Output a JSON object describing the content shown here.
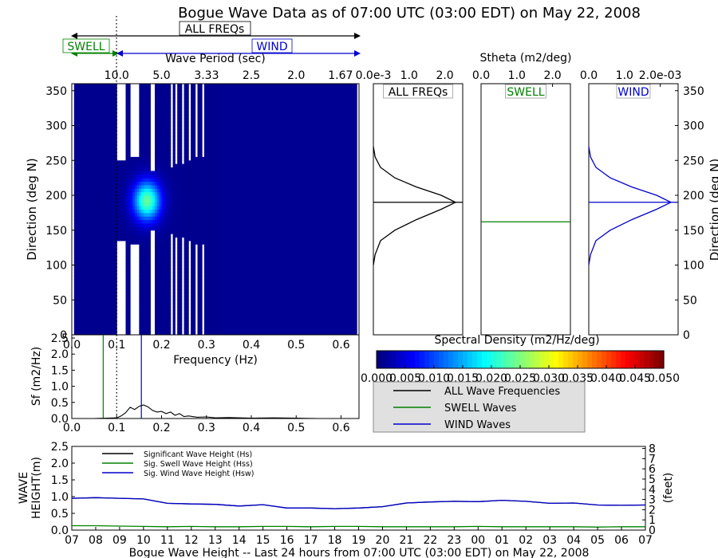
{
  "title": "Bogue Wave Data as of 07:00 UTC (03:00 EDT) on May 22, 2008",
  "header": {
    "all_label": "ALL FREQs",
    "swell_label": "SWELL",
    "wind_label": "WIND",
    "period_label": "Wave Period (sec)",
    "period_ticks": [
      "10.0",
      "5.0",
      "3.33",
      "2.5",
      "2.0",
      "1.67"
    ],
    "stheta_label": "Stheta (m2/deg)"
  },
  "colors": {
    "all": "#000000",
    "swell": "#008000",
    "wind": "#0000cc",
    "colormap": [
      "#00007f",
      "#0000ff",
      "#007fff",
      "#00ffff",
      "#7fff7f",
      "#ffff00",
      "#ff7f00",
      "#ff0000",
      "#7f0000"
    ]
  },
  "chart_data": [
    {
      "id": "spectrum_heatmap",
      "type": "heatmap",
      "title": "",
      "xlabel": "Frequency (Hz)",
      "ylabel": "Direction (deg N)",
      "xlim": [
        0.0,
        0.64
      ],
      "ylim": [
        0,
        360
      ],
      "x_ticks": [
        "0.0",
        "0.1",
        "0.2",
        "0.3",
        "0.4",
        "0.5",
        "0.6"
      ],
      "y_ticks": [
        "0",
        "50",
        "100",
        "150",
        "200",
        "250",
        "300",
        "350"
      ],
      "swell_wind_separation_hz": 0.1,
      "ridge": {
        "direction_center": 190,
        "direction_spread": 28,
        "freq_center": 0.165,
        "freq_spread": 0.03,
        "peak_density": 0.023
      },
      "gap_columns_hz": [
        0.11,
        0.115,
        0.13,
        0.135,
        0.14,
        0.145,
        0.175,
        0.18,
        0.22,
        0.23,
        0.245,
        0.26,
        0.275,
        0.29
      ],
      "colorbar": {
        "label": "Spectral Density (m2/Hz/deg)",
        "range": [
          0.0,
          0.05
        ],
        "ticks": [
          "0.000",
          "0.005",
          "0.010",
          "0.015",
          "0.020",
          "0.025",
          "0.030",
          "0.035",
          "0.040",
          "0.045",
          "0.050"
        ]
      }
    },
    {
      "id": "stheta_all",
      "type": "line",
      "label": "ALL FREQs",
      "x_ticks": [
        "0.0e-3",
        "1.0",
        "2.0"
      ],
      "xlim": [
        0,
        0.0025
      ],
      "ylim": [
        0,
        360
      ],
      "mean_direction": 190,
      "x": [
        0,
        5e-05,
        0.0002,
        0.0006,
        0.0012,
        0.0019,
        0.0023,
        0.0019,
        0.0012,
        0.0006,
        0.0002,
        5e-05,
        0
      ],
      "y": [
        100,
        115,
        135,
        150,
        165,
        180,
        190,
        200,
        212,
        225,
        240,
        255,
        270
      ]
    },
    {
      "id": "stheta_swell",
      "type": "line",
      "label": "SWELL",
      "x_ticks": [
        "0.0",
        "1.0",
        "2.0"
      ],
      "xlim": [
        0,
        2.5
      ],
      "ylim": [
        0,
        360
      ],
      "mean_direction": 162,
      "x": [],
      "y": []
    },
    {
      "id": "stheta_wind",
      "type": "line",
      "label": "WIND",
      "x_ticks": [
        "0.0",
        "1.0",
        "2.0e-03"
      ],
      "xlim": [
        0,
        0.0025
      ],
      "ylim": [
        0,
        360
      ],
      "mean_direction": 190,
      "x": [
        0,
        5e-05,
        0.0002,
        0.0006,
        0.0012,
        0.0019,
        0.0023,
        0.0019,
        0.0012,
        0.0006,
        0.0002,
        5e-05,
        0
      ],
      "y": [
        100,
        115,
        135,
        150,
        165,
        180,
        190,
        200,
        212,
        225,
        240,
        255,
        270
      ],
      "right_ylabel": "Direction (deg N)",
      "y_ticks": [
        "0",
        "50",
        "100",
        "150",
        "200",
        "250",
        "300",
        "350"
      ]
    },
    {
      "id": "frequency_spectrum",
      "type": "line",
      "ylabel": "Sf (m2/Hz)",
      "xlim": [
        0.0,
        0.64
      ],
      "ylim": [
        0,
        2.6
      ],
      "x_ticks": [
        "0.0",
        "0.1",
        "0.2",
        "0.3",
        "0.4",
        "0.5",
        "0.6"
      ],
      "y_ticks": [
        "0.0",
        "0.5",
        "1.0",
        "1.5",
        "2.0",
        "2.5"
      ],
      "swell_peak_hz": 0.07,
      "wind_peak_hz": 0.155,
      "separation_hz": 0.1,
      "x": [
        0.0,
        0.05,
        0.1,
        0.11,
        0.12,
        0.13,
        0.14,
        0.15,
        0.16,
        0.17,
        0.18,
        0.19,
        0.2,
        0.21,
        0.22,
        0.23,
        0.24,
        0.25,
        0.26,
        0.28,
        0.3,
        0.32,
        0.35,
        0.4,
        0.45,
        0.5,
        0.55
      ],
      "y": [
        0.0,
        0.0,
        0.02,
        0.08,
        0.18,
        0.35,
        0.28,
        0.38,
        0.42,
        0.36,
        0.25,
        0.2,
        0.22,
        0.15,
        0.2,
        0.1,
        0.15,
        0.06,
        0.08,
        0.04,
        0.05,
        0.02,
        0.03,
        0.01,
        0.02,
        0.01,
        0.0
      ],
      "legend": [
        "ALL Wave Frequencies",
        "SWELL Waves",
        "WIND Waves"
      ]
    },
    {
      "id": "wave_height_history",
      "type": "line",
      "title": "Bogue Wave Height -- Last 24 hours from 07:00 UTC (03:00 EDT) on May 22, 2008",
      "ylabel": "WAVE HEIGHT(m)",
      "ylim": [
        0,
        2.5
      ],
      "y_ticks": [
        "0.0",
        "0.5",
        "1.0",
        "1.5",
        "2.0",
        "2.5"
      ],
      "right_ylabel": "(feet)",
      "right_ylim": [
        0,
        8.2
      ],
      "right_ticks": [
        "0",
        "1",
        "2",
        "3",
        "4",
        "5",
        "6",
        "7",
        "8"
      ],
      "categories": [
        "07",
        "08",
        "09",
        "10",
        "11",
        "12",
        "13",
        "14",
        "15",
        "16",
        "17",
        "18",
        "19",
        "20",
        "21",
        "22",
        "23",
        "00",
        "01",
        "02",
        "03",
        "04",
        "05",
        "06",
        "07"
      ],
      "legend": [
        "Significant Wave Height (Hs)",
        "Sig. Swell Wave Height (Hss)",
        "Sig. Wind Wave Height (Hsw)"
      ],
      "series": [
        {
          "name": "Significant Wave Height (Hs)",
          "key": "all",
          "values": [
            0.95,
            0.97,
            0.95,
            0.93,
            0.8,
            0.78,
            0.77,
            0.72,
            0.76,
            0.66,
            0.66,
            0.64,
            0.66,
            0.7,
            0.81,
            0.84,
            0.86,
            0.85,
            0.89,
            0.86,
            0.8,
            0.81,
            0.75,
            0.74,
            0.75
          ]
        },
        {
          "name": "Sig. Swell Wave Height (Hss)",
          "key": "swell",
          "values": [
            0.13,
            0.13,
            0.12,
            0.11,
            0.1,
            0.11,
            0.1,
            0.1,
            0.11,
            0.11,
            0.1,
            0.11,
            0.11,
            0.1,
            0.1,
            0.1,
            0.1,
            0.11,
            0.1,
            0.1,
            0.1,
            0.1,
            0.09,
            0.1,
            0.1
          ]
        },
        {
          "name": "Sig. Wind Wave Height (Hsw)",
          "key": "wind",
          "values": [
            0.95,
            0.97,
            0.95,
            0.93,
            0.8,
            0.78,
            0.77,
            0.72,
            0.76,
            0.66,
            0.66,
            0.64,
            0.66,
            0.7,
            0.81,
            0.84,
            0.86,
            0.85,
            0.89,
            0.86,
            0.8,
            0.81,
            0.75,
            0.74,
            0.75
          ]
        }
      ]
    }
  ]
}
